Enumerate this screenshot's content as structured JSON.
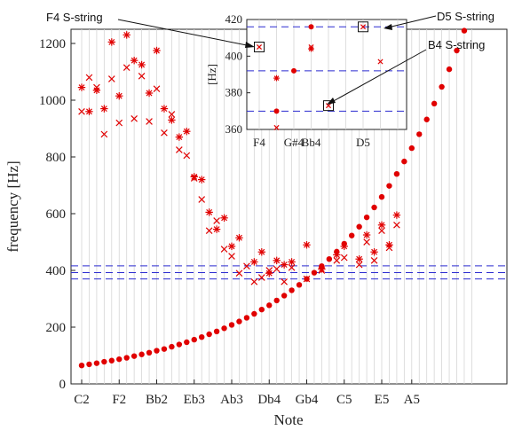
{
  "chart_data": [
    {
      "type": "scatter",
      "xlabel": "Note",
      "ylabel": "frequency [Hz]",
      "xlim": [
        0,
        52
      ],
      "ylim": [
        0,
        1250
      ],
      "grid": "vertical",
      "x_tick_labels": [
        {
          "pos": 0,
          "label": "C2"
        },
        {
          "pos": 5,
          "label": "F2"
        },
        {
          "pos": 10,
          "label": "Bb2"
        },
        {
          "pos": 15,
          "label": "Eb3"
        },
        {
          "pos": 20,
          "label": "Ab3"
        },
        {
          "pos": 25,
          "label": "Db4"
        },
        {
          "pos": 30,
          "label": "Gb4"
        },
        {
          "pos": 35,
          "label": "C5"
        },
        {
          "pos": 40,
          "label": "E5"
        },
        {
          "pos": 44,
          "label": "A5"
        }
      ],
      "y_ticks": [
        0,
        200,
        400,
        600,
        800,
        1000,
        1200
      ],
      "hlines": [
        370,
        392,
        416
      ],
      "series": [
        {
          "marker": "dot",
          "color": "#e00000",
          "x": [
            0,
            1,
            2,
            3,
            4,
            5,
            6,
            7,
            8,
            9,
            10,
            11,
            12,
            13,
            14,
            15,
            16,
            17,
            18,
            19,
            20,
            21,
            22,
            23,
            24,
            25,
            26,
            27,
            28,
            29,
            30,
            31,
            32,
            33,
            34,
            35,
            36,
            37,
            38,
            39,
            40,
            41,
            42,
            43,
            44,
            45,
            46,
            47,
            48,
            49,
            50,
            51
          ],
          "y": [
            65,
            69,
            73,
            78,
            82,
            87,
            92,
            98,
            104,
            110,
            117,
            123,
            131,
            139,
            147,
            156,
            165,
            175,
            185,
            196,
            208,
            220,
            233,
            247,
            262,
            277,
            294,
            311,
            330,
            349,
            370,
            392,
            415,
            440,
            466,
            494,
            523,
            554,
            587,
            622,
            659,
            698,
            740,
            784,
            831,
            880,
            932,
            988,
            1047,
            1109,
            1175,
            1245
          ]
        },
        {
          "marker": "asterisk",
          "color": "#e00000",
          "x": [
            0,
            1,
            2,
            3,
            4,
            5,
            6,
            7,
            8,
            9,
            10,
            11,
            12,
            13,
            14,
            15,
            16,
            17,
            18,
            19,
            20,
            21,
            22,
            23,
            24,
            25,
            26,
            27,
            28,
            29,
            30,
            31,
            32,
            33,
            34,
            35,
            36,
            37,
            38,
            39,
            40,
            41,
            42,
            43,
            44,
            45,
            46,
            47,
            48,
            49,
            50,
            51
          ],
          "y": [
            1045,
            960,
            1035,
            970,
            1205,
            1015,
            1230,
            1140,
            1125,
            1025,
            1175,
            970,
            930,
            870,
            890,
            730,
            720,
            605,
            545,
            585,
            485,
            515,
            null,
            430,
            465,
            390,
            435,
            420,
            430,
            null,
            490,
            null,
            405,
            null,
            455,
            485,
            null,
            440,
            525,
            465,
            560,
            490,
            595,
            null,
            null,
            null,
            null,
            null,
            null,
            null,
            null,
            null
          ]
        },
        {
          "marker": "cross",
          "color": "#e00000",
          "x": [
            0,
            1,
            2,
            3,
            4,
            5,
            6,
            7,
            8,
            9,
            10,
            11,
            12,
            13,
            14,
            15,
            16,
            17,
            18,
            19,
            20,
            21,
            22,
            23,
            24,
            25,
            26,
            27,
            28,
            29,
            30,
            31,
            32,
            33,
            34,
            35,
            36,
            37,
            38,
            39,
            40,
            41,
            42,
            43,
            44,
            45,
            46,
            47,
            48,
            49,
            50,
            51
          ],
          "y": [
            960,
            1080,
            1045,
            880,
            1075,
            920,
            1115,
            935,
            1085,
            925,
            1040,
            885,
            950,
            825,
            805,
            725,
            650,
            540,
            575,
            475,
            450,
            390,
            415,
            360,
            375,
            400,
            405,
            360,
            410,
            null,
            370,
            null,
            400,
            null,
            435,
            445,
            null,
            420,
            500,
            435,
            540,
            480,
            560,
            null,
            null,
            null,
            null,
            null,
            null,
            null,
            null,
            null
          ]
        }
      ]
    },
    {
      "type": "scatter",
      "inset": true,
      "ylabel": "[Hz]",
      "ylim": [
        360,
        420
      ],
      "y_ticks": [
        360,
        380,
        400,
        420
      ],
      "x_tick_labels": [
        {
          "pos": 0,
          "label": "F4"
        },
        {
          "pos": 2,
          "label": "G#4"
        },
        {
          "pos": 3,
          "label": "Bb4"
        },
        {
          "pos": 6,
          "label": "D5"
        }
      ],
      "hlines": [
        370,
        392,
        416
      ],
      "series": [
        {
          "marker": "dot",
          "x": [
            1,
            2,
            3
          ],
          "y": [
            370,
            392,
            416
          ]
        },
        {
          "marker": "asterisk",
          "x": [
            1,
            3
          ],
          "y": [
            388,
            404
          ]
        },
        {
          "marker": "cross",
          "x": [
            0,
            1,
            3,
            4,
            6,
            7
          ],
          "y": [
            405,
            361,
            405,
            373,
            416,
            397
          ]
        }
      ]
    }
  ],
  "annotations": [
    {
      "text": "F4 S-string"
    },
    {
      "text": "D5 S-string"
    },
    {
      "text": "B4 S-string"
    }
  ]
}
